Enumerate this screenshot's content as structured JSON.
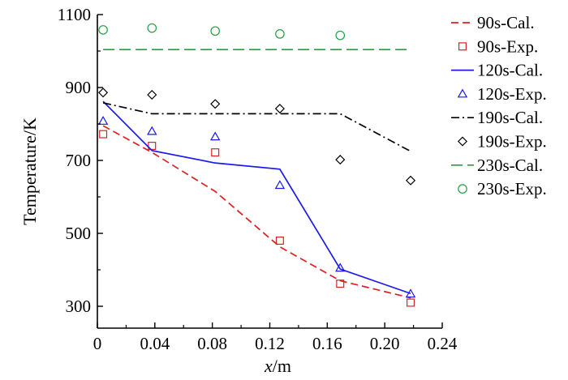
{
  "chart_data": {
    "type": "line",
    "xlabel_italic": "x",
    "xlabel_rest": "/m",
    "ylabel": "Temperature/K",
    "xlim": [
      0,
      0.24
    ],
    "ylim": [
      240,
      1100
    ],
    "x_ticks": [
      0,
      0.04,
      0.08,
      0.12,
      0.16,
      0.2,
      0.24
    ],
    "x_tick_labels": [
      "0",
      "0.04",
      "0.08",
      "0.12",
      "0.16",
      "0.20",
      "0.24"
    ],
    "y_ticks": [
      300,
      500,
      700,
      900,
      1100
    ],
    "y_tick_labels": [
      "300",
      "500",
      "700",
      "900",
      "1100"
    ],
    "grid": false,
    "legend_position": "right-outside",
    "series": [
      {
        "name": "90s-Cal.",
        "kind": "line",
        "dash": "dashed",
        "color": "#e02020",
        "x": [
          0.004,
          0.038,
          0.082,
          0.127,
          0.169,
          0.218
        ],
        "y": [
          795,
          722,
          615,
          463,
          370,
          323
        ]
      },
      {
        "name": "90s-Exp.",
        "kind": "marker",
        "marker": "square",
        "color": "#e02020",
        "x": [
          0.004,
          0.038,
          0.082,
          0.127,
          0.169,
          0.218
        ],
        "y": [
          772,
          740,
          722,
          480,
          362,
          310
        ]
      },
      {
        "name": "120s-Cal.",
        "kind": "line",
        "dash": "solid",
        "color": "#1a1aee",
        "x": [
          0.004,
          0.038,
          0.082,
          0.127,
          0.169,
          0.218
        ],
        "y": [
          862,
          727,
          693,
          676,
          402,
          335
        ]
      },
      {
        "name": "120s-Exp.",
        "kind": "marker",
        "marker": "triangle",
        "color": "#1a1aee",
        "x": [
          0.004,
          0.038,
          0.082,
          0.127,
          0.169,
          0.218
        ],
        "y": [
          808,
          780,
          765,
          632,
          405,
          334
        ]
      },
      {
        "name": "190s-Cal.",
        "kind": "line",
        "dash": "dashdot",
        "color": "#000000",
        "x": [
          0.004,
          0.038,
          0.082,
          0.127,
          0.169,
          0.218
        ],
        "y": [
          858,
          828,
          828,
          828,
          828,
          725
        ]
      },
      {
        "name": "190s-Exp.",
        "kind": "marker",
        "marker": "diamond",
        "color": "#000000",
        "x": [
          0.004,
          0.038,
          0.082,
          0.127,
          0.169,
          0.218
        ],
        "y": [
          886,
          880,
          855,
          842,
          702,
          645
        ]
      },
      {
        "name": "230s-Cal.",
        "kind": "line",
        "dash": "longdash",
        "color": "#22a040",
        "x": [
          0.004,
          0.218
        ],
        "y": [
          1004,
          1004
        ]
      },
      {
        "name": "230s-Exp.",
        "kind": "marker",
        "marker": "circle",
        "color": "#22a040",
        "x": [
          0.004,
          0.038,
          0.082,
          0.127,
          0.169
        ],
        "y": [
          1058,
          1063,
          1055,
          1047,
          1043
        ]
      }
    ]
  }
}
